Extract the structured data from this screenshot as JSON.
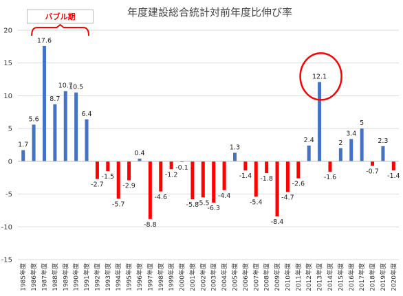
{
  "chart_data": {
    "type": "bar",
    "title": "年度建設総合統計対前年度比伸び率",
    "ylim": [
      -15,
      20
    ],
    "yticks": [
      20,
      15,
      10,
      5,
      0,
      -5,
      -10,
      -15
    ],
    "grid": true,
    "categories": [
      "1985年度",
      "1986年度",
      "1987年度",
      "1988年度",
      "1989年度",
      "1990年度",
      "1991年度",
      "1992年度",
      "1993年度",
      "1994年度",
      "1995年度",
      "1996年度",
      "1997年度",
      "1998年度",
      "1999年度",
      "2000年度",
      "2001年度",
      "2002年度",
      "2003年度",
      "2004年度",
      "2005年度",
      "2006年度",
      "2007年度",
      "2008年度",
      "2009年度",
      "2010年度",
      "2011年度",
      "2012年度",
      "2013年度",
      "2014年度",
      "2015年度",
      "2016年度",
      "2017年度",
      "2018年度",
      "2019年度",
      "2020年度"
    ],
    "values": [
      1.7,
      5.6,
      17.6,
      8.7,
      10.7,
      10.5,
      6.4,
      -2.7,
      -1.5,
      -5.7,
      -2.9,
      0.4,
      -8.8,
      -4.6,
      -1.2,
      -0.1,
      -5.8,
      -5.5,
      -6.3,
      -4.4,
      1.3,
      -1.4,
      -5.4,
      -1.8,
      -8.4,
      -4.7,
      -2.6,
      2.4,
      12.1,
      -1.6,
      2,
      3.4,
      5,
      -0.7,
      2.3,
      -1.4
    ],
    "colors": {
      "positive": "#4472c4",
      "negative": "#ff0000",
      "annotation": "#ff0000",
      "grid": "#d9d9d9"
    },
    "annotations": {
      "bubble": {
        "label": "バブル期",
        "from": "1986年度",
        "to": "1991年度"
      },
      "highlight": {
        "category": "2013年度"
      }
    }
  }
}
